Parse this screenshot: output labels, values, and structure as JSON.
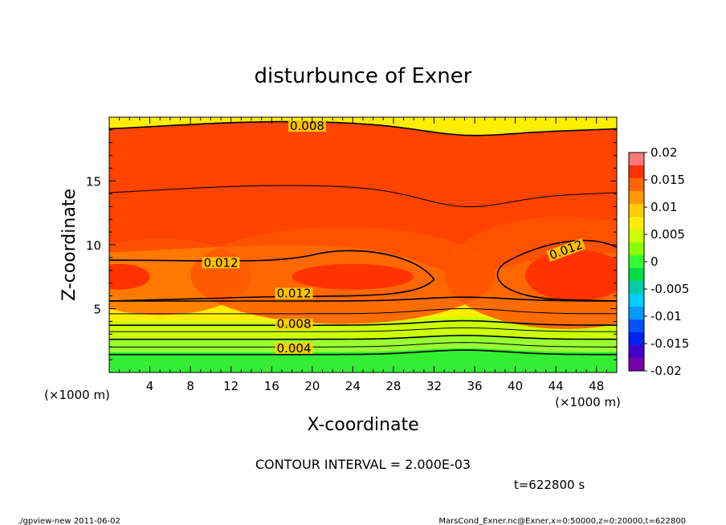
{
  "chart_data": {
    "type": "contour",
    "title": "disturbunce of Exner",
    "xlabel": "X-coordinate",
    "ylabel": "Z-coordinate",
    "x_unit": "(×1000 m)",
    "y_unit": "(×1000 m)",
    "xlim": [
      0,
      50
    ],
    "ylim": [
      0,
      20
    ],
    "x_ticks": [
      "4",
      "8",
      "12",
      "16",
      "20",
      "24",
      "28",
      "32",
      "36",
      "40",
      "44",
      "48"
    ],
    "y_ticks": [
      "5",
      "10",
      "15"
    ],
    "colorbar": {
      "levels": [
        "0.02",
        "0.015",
        "0.01",
        "0.005",
        "0",
        "-0.005",
        "-0.01",
        "-0.015",
        "-0.02"
      ],
      "colors": [
        "#ff7777",
        "#ff3300",
        "#ff6600",
        "#ff9900",
        "#ffcc00",
        "#ffee00",
        "#ccff00",
        "#88ff00",
        "#33ff33",
        "#00dd44",
        "#00ccaa",
        "#00ccff",
        "#0099ff",
        "#0055ff",
        "#0022ee",
        "#4400cc",
        "#7700aa"
      ]
    },
    "band_colors": [
      "#33ee33",
      "#99ff33",
      "#ccff00",
      "#ffee00",
      "#ffcc00",
      "#ffaa00",
      "#ff8800",
      "#ff6600",
      "#ff4400"
    ],
    "contour_labels": [
      {
        "text": "0.008",
        "x": 19.5,
        "z": 19.3
      },
      {
        "text": "0.012",
        "x": 11,
        "z": 8.6
      },
      {
        "text": "0.012",
        "x": 18.2,
        "z": 6.2
      },
      {
        "text": "0.012",
        "x": 45,
        "z": 9.6
      },
      {
        "text": "0.008",
        "x": 18.2,
        "z": 3.8
      },
      {
        "text": "0.004",
        "x": 18.2,
        "z": 1.9
      }
    ]
  },
  "contour_interval": "CONTOUR INTERVAL = 2.000E-03",
  "time_label": "t=622800 s",
  "footer_left": "./gpview-new   2011-06-02",
  "footer_right": "MarsCond_Exner.nc@Exner,x=0:50000,z=0:20000,t=622800"
}
